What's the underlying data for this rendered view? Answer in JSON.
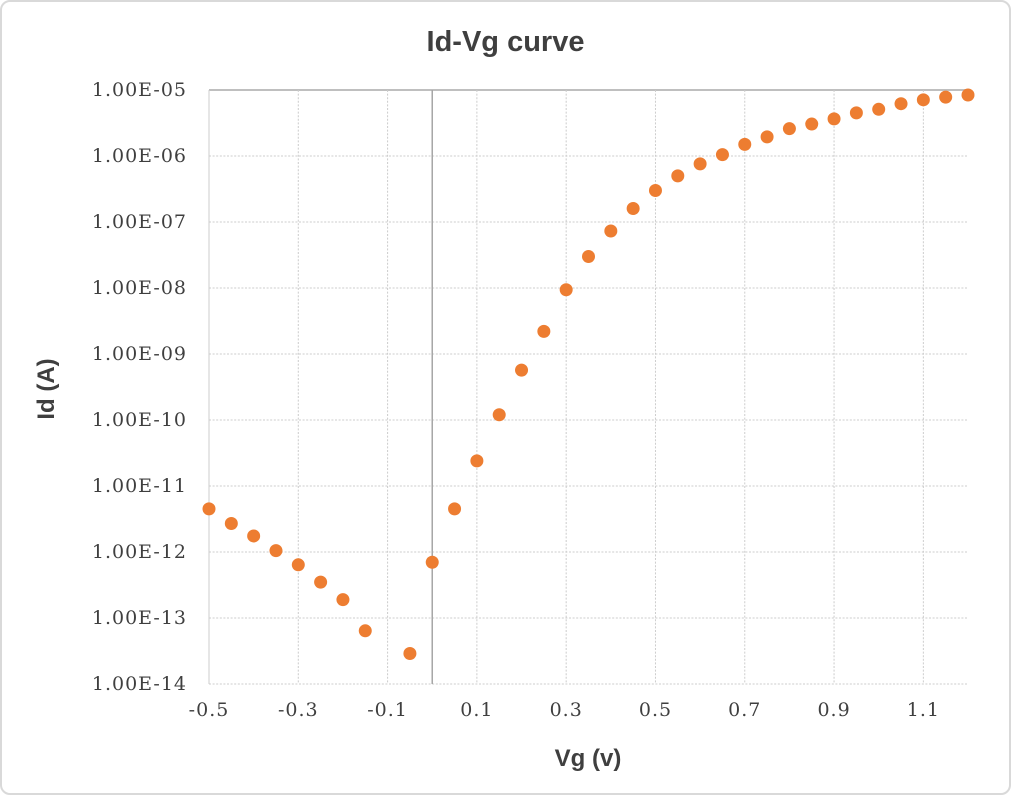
{
  "chart": {
    "title": "Id-Vg curve",
    "x_axis": {
      "title": "Vg (v)",
      "min": -0.5,
      "max": 1.2,
      "tick_labels": [
        "-0.5",
        "-0.3",
        "-0.1",
        "0.1",
        "0.3",
        "0.5",
        "0.7",
        "0.9",
        "1.1"
      ],
      "tick_values": [
        -0.5,
        -0.3,
        -0.1,
        0.1,
        0.3,
        0.5,
        0.7,
        0.9,
        1.1
      ]
    },
    "y_axis": {
      "title": "Id (A)",
      "scale": "log",
      "tick_labels": [
        "1.00E-05",
        "1.00E-06",
        "1.00E-07",
        "1.00E-08",
        "1.00E-09",
        "1.00E-10",
        "1.00E-11",
        "1.00E-12",
        "1.00E-13",
        "1.00E-14"
      ],
      "tick_exponents": [
        -5,
        -6,
        -7,
        -8,
        -9,
        -10,
        -11,
        -12,
        -13,
        -14
      ]
    },
    "colors": {
      "marker": "#ED7D31",
      "gridline": "#CCCCCC",
      "plot_top_border": "#BFBFBF",
      "zero_axis_line": "#A6A6A6",
      "chart_border": "#D9D9D9",
      "text": "#3F3F3F"
    }
  },
  "chart_data": {
    "type": "scatter",
    "title": "Id-Vg curve",
    "xlabel": "Vg (v)",
    "ylabel": "Id (A)",
    "x_range": [
      -0.5,
      1.2
    ],
    "y_scale": "log",
    "y_range": [
      1e-14,
      1e-05
    ],
    "grid": true,
    "legend": false,
    "note": "point at Vg=-0.10 is absent (not plottable on log axis)",
    "series": [
      {
        "name": "Id",
        "marker": "circle",
        "color": "#ED7D31",
        "x": [
          -0.5,
          -0.45,
          -0.4,
          -0.35,
          -0.3,
          -0.25,
          -0.2,
          -0.15,
          -0.05,
          0.0,
          0.05,
          0.1,
          0.15,
          0.2,
          0.25,
          0.3,
          0.35,
          0.4,
          0.45,
          0.5,
          0.55,
          0.6,
          0.65,
          0.7,
          0.75,
          0.8,
          0.85,
          0.9,
          0.95,
          1.0,
          1.05,
          1.1,
          1.15,
          1.2
        ],
        "y": [
          4.5e-12,
          2.7e-12,
          1.75e-12,
          1.05e-12,
          6.4e-13,
          3.5e-13,
          1.9e-13,
          6.4e-14,
          2.9e-14,
          7e-13,
          4.5e-12,
          2.4e-11,
          1.2e-10,
          5.7e-10,
          2.2e-09,
          9.4e-09,
          3e-08,
          7.3e-08,
          1.6e-07,
          3e-07,
          5e-07,
          7.6e-07,
          1.05e-06,
          1.5e-06,
          1.95e-06,
          2.6e-06,
          3.05e-06,
          3.65e-06,
          4.5e-06,
          5.1e-06,
          6.2e-06,
          7.1e-06,
          7.8e-06,
          8.4e-06
        ]
      }
    ]
  }
}
